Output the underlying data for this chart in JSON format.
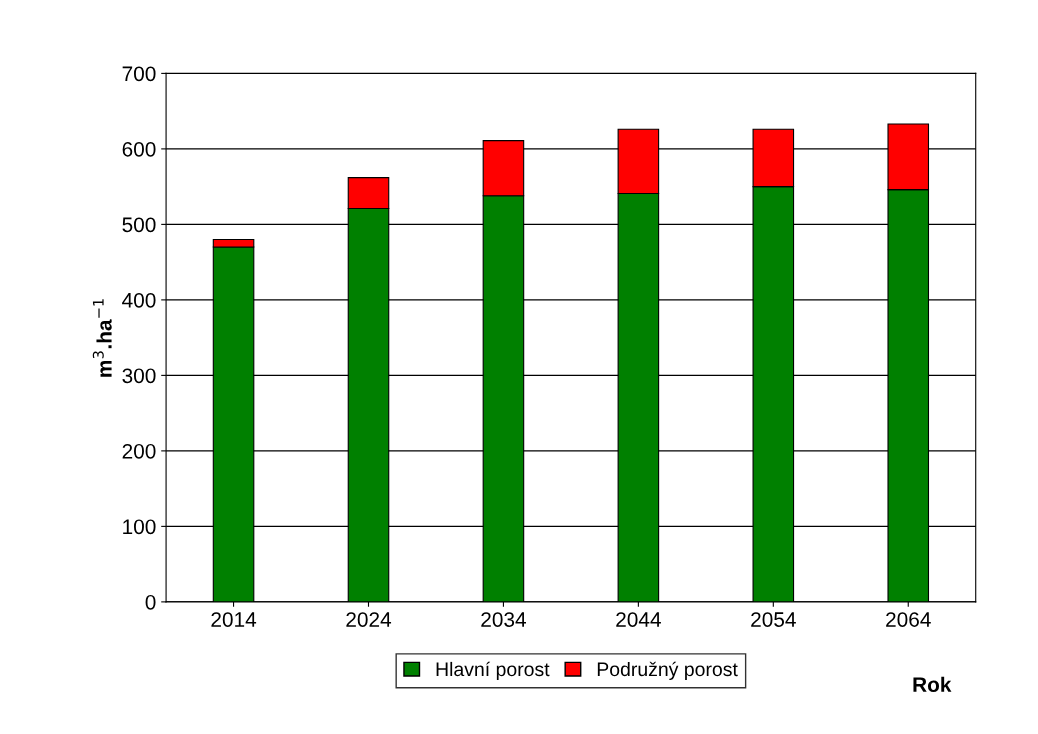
{
  "chart_data": {
    "type": "bar",
    "stacked": true,
    "xlabel": "Rok",
    "ylabel": "m$^{3}$.ha$^{−1}$",
    "categories": [
      "2014",
      "2024",
      "2034",
      "2044",
      "2054",
      "2064"
    ],
    "series": [
      {
        "name": "Hlavní porost",
        "color": "#008000",
        "values": [
          470,
          521,
          538,
          541,
          550,
          546
        ]
      },
      {
        "name": "Podružný porost",
        "color": "#ff0000",
        "values": [
          10,
          41,
          73,
          85,
          76,
          87
        ]
      }
    ],
    "ylim": [
      0,
      700
    ],
    "yticks": [
      0,
      100,
      200,
      300,
      400,
      500,
      600,
      700
    ],
    "grid": "y",
    "legend": "bottom"
  }
}
